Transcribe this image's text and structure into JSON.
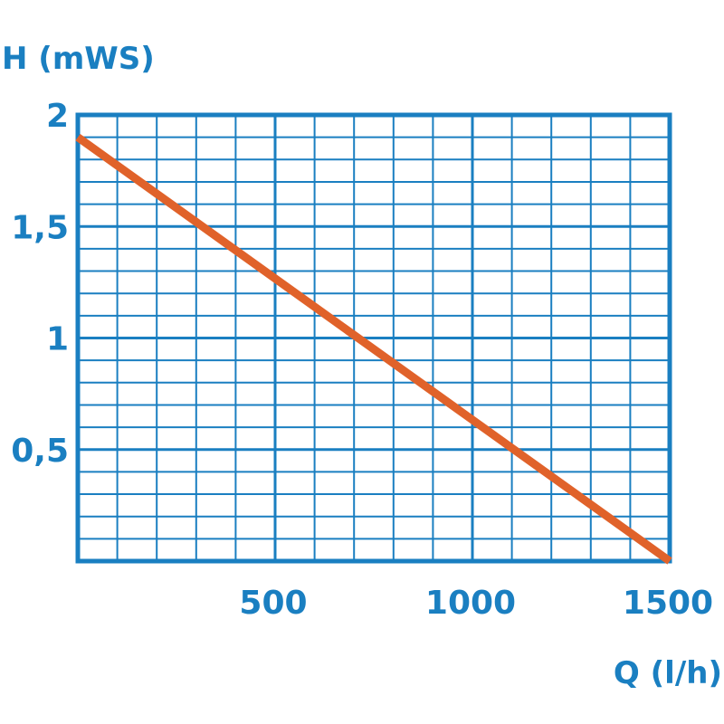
{
  "chart_data": {
    "type": "line",
    "title": "",
    "ylabel": "H (mWS)",
    "xlabel": "Q (l/h)",
    "xlim": [
      0,
      1500
    ],
    "ylim": [
      0,
      2
    ],
    "x_ticks": [
      500,
      1000,
      1500
    ],
    "x_tick_labels": [
      "500",
      "1000",
      "1500"
    ],
    "y_ticks": [
      0.5,
      1,
      1.5,
      2
    ],
    "y_tick_labels": [
      "0,5",
      "1",
      "1,5",
      "2"
    ],
    "grid": true,
    "minor_grid_x_step": 100,
    "minor_grid_y_step": 0.1,
    "series": [
      {
        "x": [
          0,
          1500
        ],
        "y": [
          1.9,
          0
        ]
      }
    ],
    "colors": {
      "grid": "#1a7fc1",
      "line": "#e0622a"
    }
  }
}
